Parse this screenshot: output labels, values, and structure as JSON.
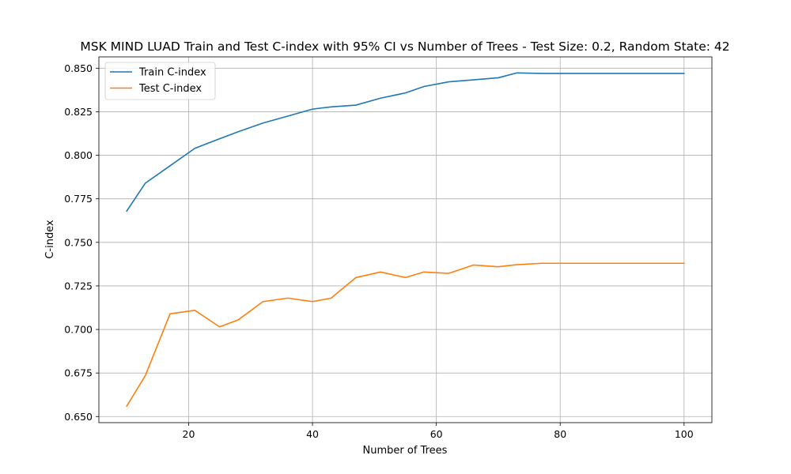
{
  "chart_data": {
    "type": "line",
    "title": "MSK MIND LUAD Train and Test C-index with 95% CI vs Number of Trees - Test Size: 0.2, Random State: 42",
    "xlabel": "Number of Trees",
    "ylabel": "C-index",
    "xlim": [
      5.5,
      104.5
    ],
    "ylim": [
      0.6465,
      0.8565
    ],
    "x_ticks": [
      20,
      40,
      60,
      80,
      100
    ],
    "x_tick_labels": [
      "20",
      "40",
      "60",
      "80",
      "100"
    ],
    "y_ticks": [
      0.65,
      0.675,
      0.7,
      0.725,
      0.75,
      0.775,
      0.8,
      0.825,
      0.85
    ],
    "y_tick_labels": [
      "0.650",
      "0.675",
      "0.700",
      "0.725",
      "0.750",
      "0.775",
      "0.800",
      "0.825",
      "0.850"
    ],
    "grid": true,
    "legend_position": "top-left",
    "x": [
      10,
      13,
      17,
      21,
      25,
      28,
      32,
      36,
      40,
      43,
      47,
      51,
      55,
      58,
      62,
      66,
      70,
      73,
      77,
      81,
      85,
      89,
      92,
      96,
      100
    ],
    "series": [
      {
        "name": "Train C-index",
        "color": "#1f77b4",
        "values": [
          0.768,
          0.784,
          0.794,
          0.804,
          0.8095,
          0.8135,
          0.8185,
          0.8225,
          0.8265,
          0.8278,
          0.8288,
          0.8328,
          0.8358,
          0.8395,
          0.8422,
          0.8433,
          0.8445,
          0.8473,
          0.847,
          0.847,
          0.847,
          0.847,
          0.847,
          0.847,
          0.847
        ]
      },
      {
        "name": "Test C-index",
        "color": "#ff7f0e",
        "values": [
          0.656,
          0.6735,
          0.709,
          0.711,
          0.7015,
          0.7055,
          0.716,
          0.718,
          0.716,
          0.718,
          0.7298,
          0.733,
          0.7298,
          0.733,
          0.7322,
          0.737,
          0.736,
          0.7372,
          0.738,
          0.738,
          0.738,
          0.738,
          0.738,
          0.738,
          0.738
        ]
      }
    ]
  }
}
